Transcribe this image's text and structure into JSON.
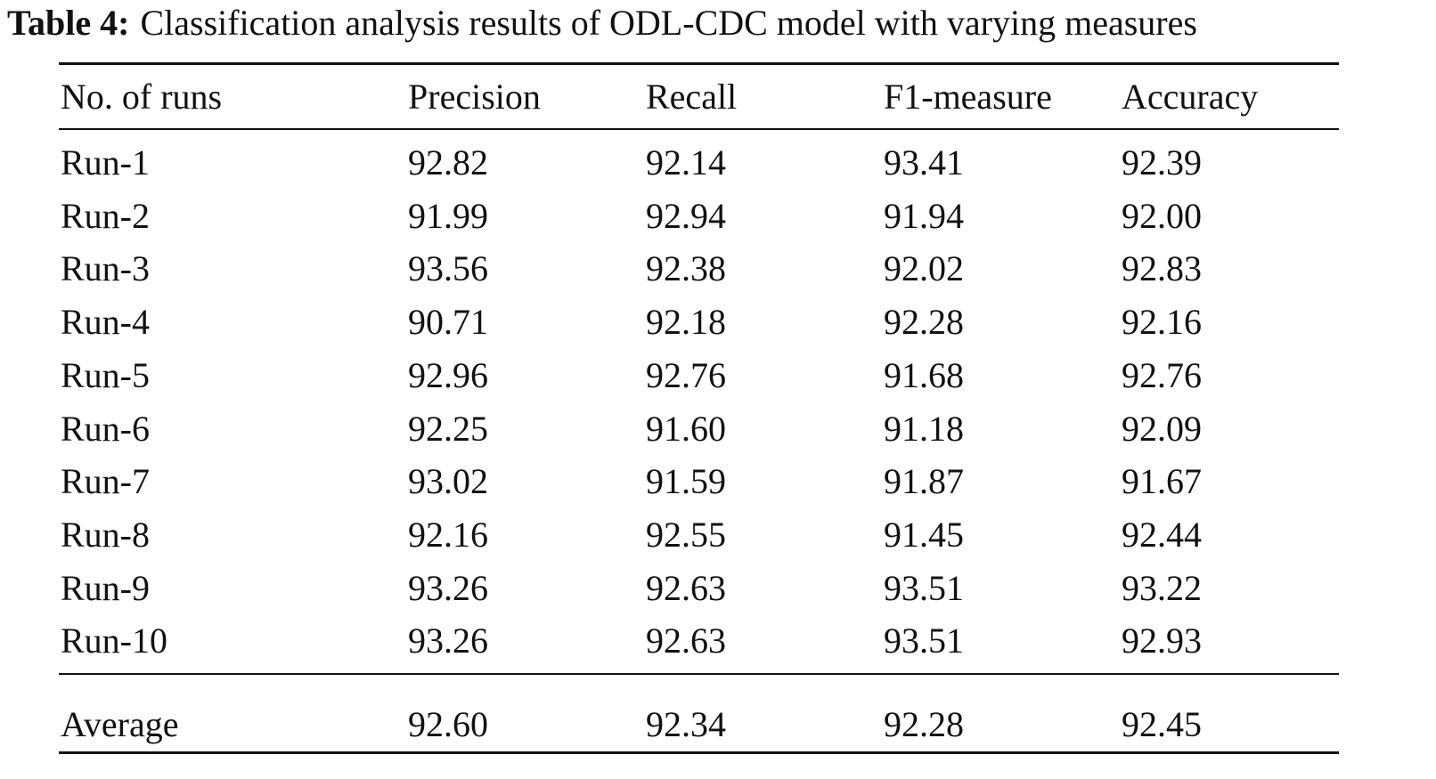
{
  "caption": {
    "label": "Table 4:",
    "text": "Classification analysis results of ODL-CDC model with varying measures"
  },
  "table": {
    "header": [
      "No. of runs",
      "Precision",
      "Recall",
      "F1-measure",
      "Accuracy"
    ],
    "rows": [
      [
        "Run-1",
        "92.82",
        "92.14",
        "93.41",
        "92.39"
      ],
      [
        "Run-2",
        "91.99",
        "92.94",
        "91.94",
        "92.00"
      ],
      [
        "Run-3",
        "93.56",
        "92.38",
        "92.02",
        "92.83"
      ],
      [
        "Run-4",
        "90.71",
        "92.18",
        "92.28",
        "92.16"
      ],
      [
        "Run-5",
        "92.96",
        "92.76",
        "91.68",
        "92.76"
      ],
      [
        "Run-6",
        "92.25",
        "91.60",
        "91.18",
        "92.09"
      ],
      [
        "Run-7",
        "93.02",
        "91.59",
        "91.87",
        "91.67"
      ],
      [
        "Run-8",
        "92.16",
        "92.55",
        "91.45",
        "92.44"
      ],
      [
        "Run-9",
        "93.26",
        "92.63",
        "93.51",
        "93.22"
      ],
      [
        "Run-10",
        "93.26",
        "92.63",
        "93.51",
        "92.93"
      ]
    ],
    "footer": [
      "Average",
      "92.60",
      "92.34",
      "92.28",
      "92.45"
    ]
  }
}
